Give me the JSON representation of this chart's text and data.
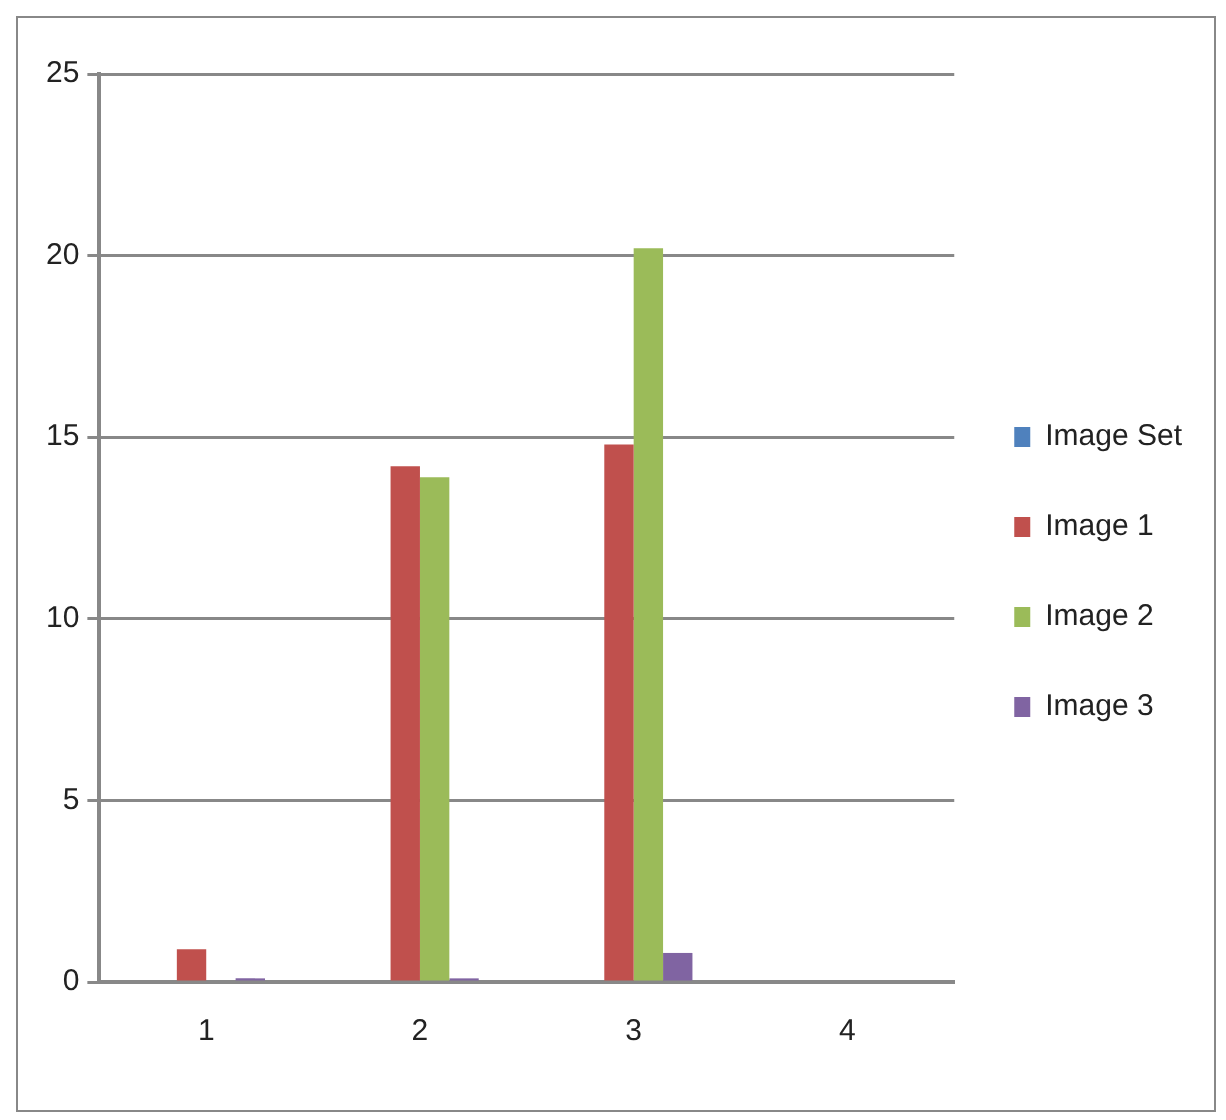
{
  "chart_data": {
    "type": "bar",
    "categories": [
      "1",
      "2",
      "3",
      "4"
    ],
    "series": [
      {
        "name": "Image Set",
        "color": "#4f81bd",
        "values": [
          0,
          0,
          0,
          0
        ]
      },
      {
        "name": "Image 1",
        "color": "#c0504d",
        "values": [
          0.9,
          14.2,
          14.8,
          0
        ]
      },
      {
        "name": "Image 2",
        "color": "#9bbb59",
        "values": [
          0,
          13.9,
          20.2,
          0
        ]
      },
      {
        "name": "Image 3",
        "color": "#8064a2",
        "values": [
          0.1,
          0.1,
          0.8,
          0
        ]
      }
    ],
    "ylim": [
      0,
      25
    ],
    "yticks": [
      0,
      5,
      10,
      15,
      20,
      25
    ],
    "grid": "y",
    "legend": "right"
  }
}
